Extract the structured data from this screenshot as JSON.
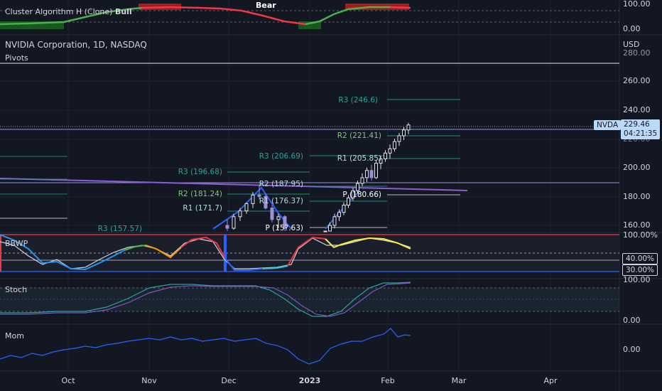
{
  "header": {
    "cluster_title": "Cluster Algorithm H (Clone)",
    "cluster_bull": "Bull",
    "cluster_bear": "Bear",
    "symbol_title": "NVIDIA Corporation, 1D, NASDAQ",
    "pivots_label": "Pivots"
  },
  "panes": {
    "bbwp": "BBWP",
    "stoch": "Stoch",
    "mom": "Mom"
  },
  "axis": {
    "cluster_ticks": [
      "100.00",
      "0.00"
    ],
    "currency": "USD",
    "price_ticks": [
      "280.00",
      "260.00",
      "240.00",
      "220.00",
      "200.00",
      "180.00",
      "160.00"
    ],
    "bbwp_top": "100.00%",
    "bbwp_tags": [
      "40.00%",
      "30.00%"
    ],
    "stoch_ticks": [
      "100.00",
      "0.00"
    ],
    "mom_ticks": [
      "0.00"
    ]
  },
  "last_price": {
    "ticker": "NVDA",
    "price": "229.46",
    "countdown": "04:21:35"
  },
  "time_axis": [
    "Oct",
    "Nov",
    "Dec",
    "2023",
    "Feb",
    "Mar",
    "Apr"
  ],
  "pivot_labels": {
    "p1": [
      "R3 (157.57)",
      "R1 (171.7)",
      "R2 (181.24)",
      "R3 (196.68)"
    ],
    "p2": [
      "P (15?.63)",
      "R1 (176.37)",
      "R2 (187.95)",
      "R3 (206.69)"
    ],
    "p3": [
      "P (180.66)",
      "R1 (205.85)",
      "R2 (221.41)",
      "R3 (246.6)"
    ]
  },
  "colors": {
    "background": "#131722",
    "bull": "#4caf50",
    "bear": "#f23645",
    "pivot_teal": "#26a69a",
    "pivot_light": "#b2dfdb",
    "trend_blue": "#2962ff",
    "trend_purple": "#7e57c2",
    "last_price_tag": "#bbd9fb"
  },
  "chart_data": {
    "type": "candlestick",
    "price_range": [
      150,
      285
    ],
    "series": [
      {
        "name": "NVDA",
        "note": "daily candles, late Nov 2022 – Feb 2023",
        "values": [
          {
            "o": 160,
            "h": 164,
            "l": 155,
            "c": 158
          },
          {
            "o": 158,
            "h": 168,
            "l": 157,
            "c": 166
          },
          {
            "o": 166,
            "h": 172,
            "l": 163,
            "c": 170
          },
          {
            "o": 170,
            "h": 176,
            "l": 168,
            "c": 175
          },
          {
            "o": 175,
            "h": 183,
            "l": 172,
            "c": 181
          },
          {
            "o": 181,
            "h": 188,
            "l": 178,
            "c": 180
          },
          {
            "o": 180,
            "h": 182,
            "l": 171,
            "c": 172
          },
          {
            "o": 172,
            "h": 174,
            "l": 162,
            "c": 164
          },
          {
            "o": 164,
            "h": 168,
            "l": 158,
            "c": 166
          },
          {
            "o": 166,
            "h": 167,
            "l": 156,
            "c": 158
          },
          {
            "o": 150,
            "h": 156,
            "l": 145,
            "c": 154
          },
          {
            "o": 154,
            "h": 162,
            "l": 152,
            "c": 160
          },
          {
            "o": 160,
            "h": 168,
            "l": 158,
            "c": 166
          },
          {
            "o": 166,
            "h": 171,
            "l": 163,
            "c": 169
          },
          {
            "o": 169,
            "h": 176,
            "l": 167,
            "c": 174
          },
          {
            "o": 174,
            "h": 181,
            "l": 172,
            "c": 179
          },
          {
            "o": 179,
            "h": 186,
            "l": 177,
            "c": 184
          },
          {
            "o": 184,
            "h": 191,
            "l": 182,
            "c": 189
          },
          {
            "o": 189,
            "h": 196,
            "l": 187,
            "c": 193
          },
          {
            "o": 193,
            "h": 200,
            "l": 190,
            "c": 198
          },
          {
            "o": 198,
            "h": 202,
            "l": 191,
            "c": 193
          },
          {
            "o": 193,
            "h": 205,
            "l": 192,
            "c": 203
          },
          {
            "o": 203,
            "h": 208,
            "l": 199,
            "c": 206
          },
          {
            "o": 206,
            "h": 212,
            "l": 204,
            "c": 210
          },
          {
            "o": 210,
            "h": 216,
            "l": 206,
            "c": 213
          },
          {
            "o": 213,
            "h": 220,
            "l": 211,
            "c": 218
          },
          {
            "o": 218,
            "h": 224,
            "l": 215,
            "c": 222
          },
          {
            "o": 222,
            "h": 228,
            "l": 219,
            "c": 226
          },
          {
            "o": 226,
            "h": 231,
            "l": 223,
            "c": 229.46
          }
        ]
      }
    ]
  }
}
